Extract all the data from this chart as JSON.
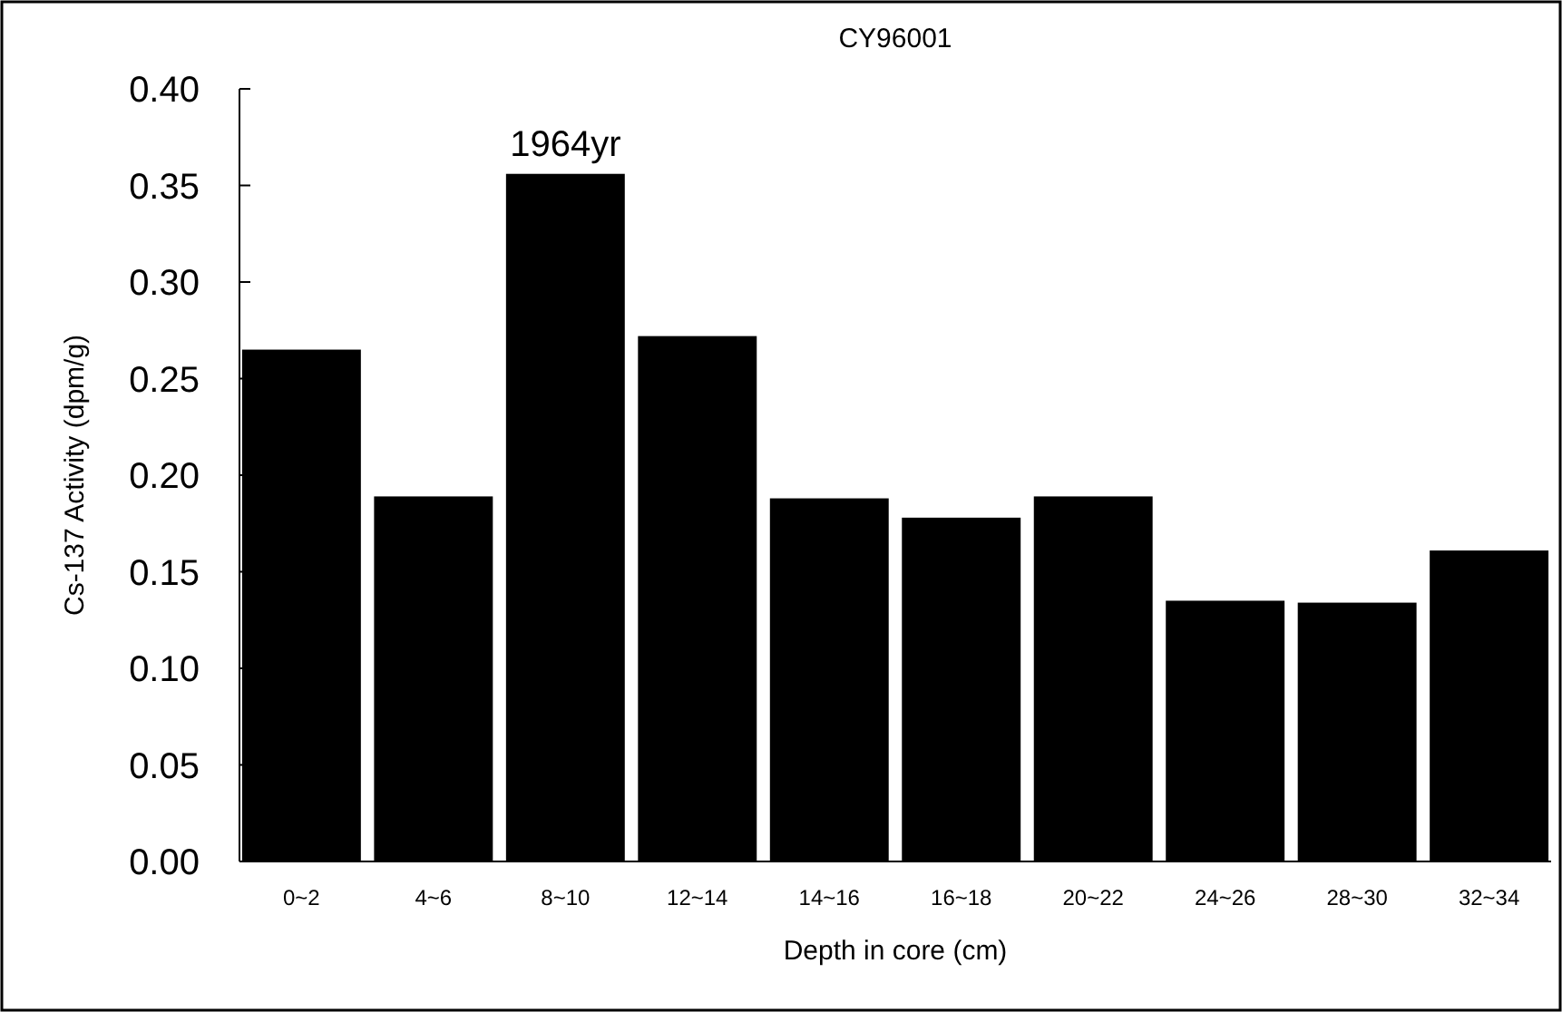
{
  "chart_data": {
    "type": "bar",
    "title": "CY96001",
    "xlabel": "Depth in core (cm)",
    "ylabel": "Cs-137 Activity (dpm/g)",
    "categories": [
      "0~2",
      "4~6",
      "8~10",
      "12~14",
      "14~16",
      "16~18",
      "20~22",
      "24~26",
      "28~30",
      "32~34"
    ],
    "values": [
      0.265,
      0.189,
      0.356,
      0.272,
      0.188,
      0.178,
      0.189,
      0.135,
      0.134,
      0.161
    ],
    "color": "#000000",
    "ylim": [
      0,
      0.4
    ],
    "yticks": [
      {
        "value": 0,
        "label": "0.00"
      },
      {
        "value": 0.05,
        "label": "0.05"
      },
      {
        "value": 0.1,
        "label": "0.10"
      },
      {
        "value": 0.15,
        "label": "0.15"
      },
      {
        "value": 0.2,
        "label": "0.20"
      },
      {
        "value": 0.25,
        "label": "0.25"
      },
      {
        "value": 0.3,
        "label": "0.30"
      },
      {
        "value": 0.35,
        "label": "0.35"
      },
      {
        "value": 0.4,
        "label": "0.40"
      }
    ],
    "annotations": [
      {
        "text": "1964yr",
        "x": "8~10",
        "y": 0.356
      }
    ]
  }
}
